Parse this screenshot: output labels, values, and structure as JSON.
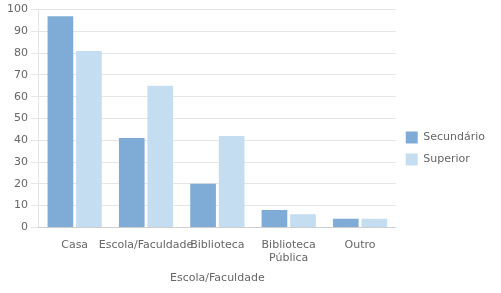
{
  "chart_data": {
    "type": "bar",
    "categories": [
      "Casa",
      "Escola/Faculdade",
      "Biblioteca",
      "Biblioteca\nPública",
      "Outro"
    ],
    "series": [
      {
        "name": "Secundário",
        "color": "#7facd6",
        "values": [
          97,
          41,
          20,
          8,
          4
        ]
      },
      {
        "name": "Superior",
        "color": "#c5ddf0",
        "values": [
          81,
          65,
          42,
          6,
          4
        ]
      }
    ],
    "xlabel": "Escola/Faculdade",
    "ylim": [
      0,
      100
    ],
    "yticks": [
      0,
      10,
      20,
      30,
      40,
      50,
      60,
      70,
      80,
      90,
      100
    ],
    "grid": true,
    "legend": "right"
  }
}
